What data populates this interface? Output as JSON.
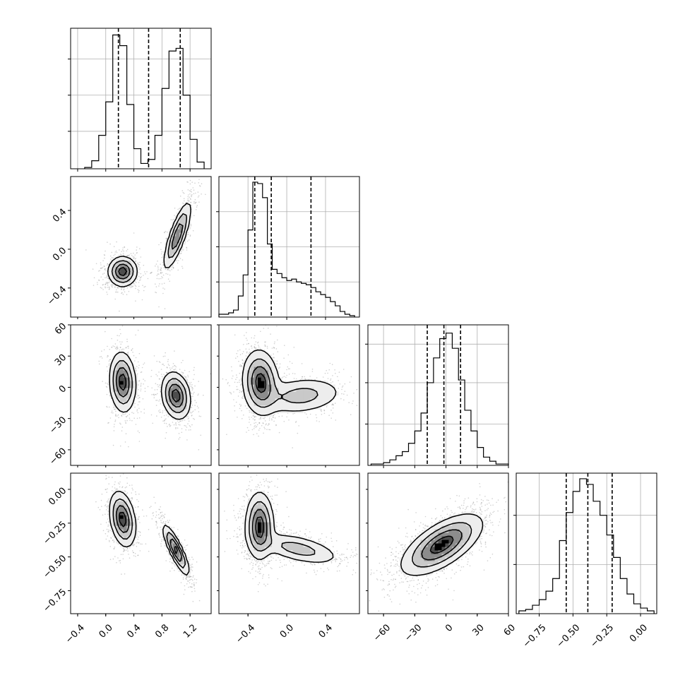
{
  "chart_data": {
    "type": "corner",
    "title": "",
    "parameters": [
      {
        "range": [
          -0.5,
          1.5
        ],
        "ticks": [
          -0.4,
          0.0,
          0.4,
          0.8,
          1.2
        ],
        "tick_labels": [
          "−0.4",
          "0.0",
          "0.4",
          "0.8",
          "1.2"
        ],
        "quantiles": [
          0.18,
          0.61,
          1.06
        ]
      },
      {
        "range": [
          -0.7,
          0.75
        ],
        "ticks": [
          -0.4,
          0.0,
          0.4
        ],
        "tick_labels": [
          "−0.4",
          "0.0",
          "0.4"
        ],
        "quantiles": [
          -0.33,
          -0.16,
          0.25
        ]
      },
      {
        "range": [
          -75,
          60
        ],
        "ticks": [
          -60,
          -30,
          0,
          30,
          60
        ],
        "tick_labels": [
          "−60",
          "−30",
          "0",
          "30",
          "60"
        ],
        "quantiles": [
          -18,
          -2,
          14
        ]
      },
      {
        "range": [
          -0.92,
          0.12
        ],
        "ticks": [
          -0.75,
          -0.5,
          -0.25,
          0.0
        ],
        "tick_labels": [
          "−0.75",
          "−0.50",
          "−0.25",
          "0.00"
        ],
        "quantiles": [
          -0.55,
          -0.39,
          -0.21
        ]
      }
    ],
    "histograms": [
      {
        "param": 0,
        "bin_edges": [
          -0.3,
          -0.2,
          -0.1,
          0.0,
          0.1,
          0.2,
          0.3,
          0.4,
          0.5,
          0.6,
          0.7,
          0.8,
          0.9,
          1.0,
          1.1,
          1.2,
          1.3,
          1.4
        ],
        "counts": [
          0.01,
          0.06,
          0.25,
          0.5,
          1.0,
          0.92,
          0.48,
          0.15,
          0.04,
          0.07,
          0.25,
          0.6,
          0.88,
          0.9,
          0.55,
          0.22,
          0.05
        ],
        "ymax": 1.05,
        "yticks": [
          0.28,
          0.55,
          0.82
        ]
      },
      {
        "param": 1,
        "bin_edges": [
          -0.7,
          -0.65,
          -0.6,
          -0.55,
          -0.5,
          -0.45,
          -0.4,
          -0.35,
          -0.3,
          -0.25,
          -0.2,
          -0.15,
          -0.1,
          -0.05,
          0.0,
          0.05,
          0.1,
          0.15,
          0.2,
          0.25,
          0.3,
          0.35,
          0.4,
          0.45,
          0.5,
          0.55,
          0.6,
          0.65,
          0.7
        ],
        "counts": [
          0.02,
          0.02,
          0.03,
          0.05,
          0.15,
          0.3,
          0.62,
          0.96,
          0.95,
          0.85,
          0.52,
          0.34,
          0.31,
          0.28,
          0.26,
          0.27,
          0.25,
          0.24,
          0.23,
          0.21,
          0.18,
          0.16,
          0.14,
          0.11,
          0.08,
          0.04,
          0.02,
          0.01
        ],
        "ymax": 1.0,
        "yticks": [
          0.25,
          0.5,
          0.75
        ]
      },
      {
        "param": 2,
        "bin_edges": [
          -72,
          -66,
          -60,
          -54,
          -48,
          -42,
          -36,
          -30,
          -24,
          -18,
          -12,
          -6,
          0,
          6,
          12,
          18,
          24,
          30,
          36,
          42,
          48,
          54,
          60
        ],
        "counts": [
          0.01,
          0.01,
          0.02,
          0.04,
          0.07,
          0.1,
          0.16,
          0.25,
          0.38,
          0.6,
          0.78,
          0.92,
          0.96,
          0.85,
          0.62,
          0.4,
          0.25,
          0.13,
          0.06,
          0.03,
          0.01,
          0.01
        ],
        "ymax": 1.02,
        "yticks": [
          0.3,
          0.6,
          0.88
        ]
      },
      {
        "param": 3,
        "bin_edges": [
          -0.9,
          -0.85,
          -0.8,
          -0.75,
          -0.7,
          -0.65,
          -0.6,
          -0.55,
          -0.5,
          -0.45,
          -0.4,
          -0.35,
          -0.3,
          -0.25,
          -0.2,
          -0.15,
          -0.1,
          -0.05,
          0.0,
          0.05,
          0.1
        ],
        "counts": [
          0.02,
          0.03,
          0.06,
          0.1,
          0.16,
          0.25,
          0.52,
          0.72,
          0.87,
          0.96,
          0.92,
          0.8,
          0.7,
          0.56,
          0.4,
          0.25,
          0.14,
          0.07,
          0.04,
          0.02
        ],
        "ymax": 1.0,
        "yticks": [
          0.35,
          0.7
        ]
      }
    ],
    "pairs": [
      {
        "x_param": 0,
        "y_param": 1,
        "modes": [
          {
            "cx": 0.24,
            "cy": -0.23,
            "sx": 0.1,
            "sy": 0.075,
            "rho": 0.0,
            "w": 1.0
          },
          {
            "cx": 1.02,
            "cy": 0.14,
            "sx": 0.095,
            "sy": 0.17,
            "rho": 0.8,
            "w": 0.85
          }
        ]
      },
      {
        "x_param": 0,
        "y_param": 2,
        "modes": [
          {
            "cx": 0.24,
            "cy": 5,
            "sx": 0.09,
            "sy": 14,
            "rho": -0.1,
            "w": 1.0
          },
          {
            "cx": 1.0,
            "cy": -8,
            "sx": 0.1,
            "sy": 11,
            "rho": -0.2,
            "w": 1.0
          }
        ]
      },
      {
        "x_param": 0,
        "y_param": 3,
        "modes": [
          {
            "cx": 0.24,
            "cy": -0.22,
            "sx": 0.09,
            "sy": 0.1,
            "rho": -0.3,
            "w": 1.0
          },
          {
            "cx": 1.0,
            "cy": -0.45,
            "sx": 0.09,
            "sy": 0.09,
            "rho": -0.85,
            "w": 1.0
          }
        ]
      },
      {
        "x_param": 1,
        "y_param": 2,
        "modes": [
          {
            "cx": -0.27,
            "cy": 5,
            "sx": 0.09,
            "sy": 15,
            "rho": -0.1,
            "w": 1.0
          },
          {
            "cx": 0.15,
            "cy": -8,
            "sx": 0.22,
            "sy": 9,
            "rho": 0.2,
            "w": 0.45
          }
        ]
      },
      {
        "x_param": 1,
        "y_param": 3,
        "modes": [
          {
            "cx": -0.28,
            "cy": -0.27,
            "sx": 0.07,
            "sy": 0.12,
            "rho": 0.0,
            "w": 1.0
          },
          {
            "cx": 0.12,
            "cy": -0.44,
            "sx": 0.22,
            "sy": 0.06,
            "rho": -0.55,
            "w": 0.45
          }
        ]
      },
      {
        "x_param": 2,
        "y_param": 3,
        "modes": [
          {
            "cx": -4,
            "cy": -0.41,
            "sx": 19,
            "sy": 0.11,
            "rho": 0.65,
            "w": 1.0
          }
        ]
      }
    ],
    "contour_levels": [
      0.12,
      0.33,
      0.6,
      0.85
    ]
  }
}
